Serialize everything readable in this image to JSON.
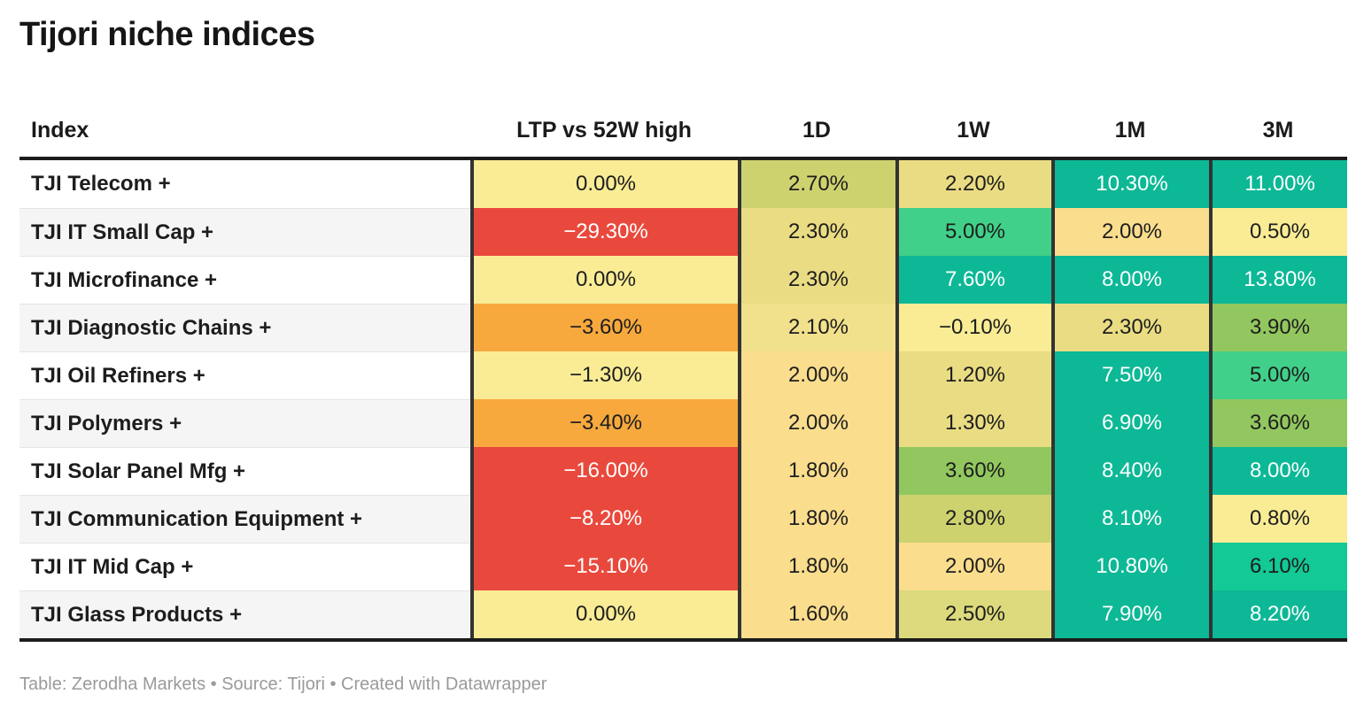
{
  "footer": "Table: Zerodha Markets • Source: Tijori • Created with Datawrapper",
  "chart_data": {
    "type": "table",
    "title": "Tijori niche indices",
    "columns": [
      "Index",
      "LTP vs 52W high",
      "1D",
      "1W",
      "1M",
      "3M"
    ],
    "rows": [
      {
        "index": "TJI Telecom +",
        "values": [
          "0.00%",
          "2.70%",
          "2.20%",
          "10.30%",
          "11.00%"
        ],
        "colors": [
          "paleYellow",
          "olive",
          "khaki",
          "teal",
          "teal"
        ]
      },
      {
        "index": "TJI IT Small Cap +",
        "values": [
          "−29.30%",
          "2.30%",
          "5.00%",
          "2.00%",
          "0.50%"
        ],
        "colors": [
          "red",
          "khaki",
          "medGreen",
          "peach",
          "paleYellow"
        ]
      },
      {
        "index": "TJI Microfinance +",
        "values": [
          "0.00%",
          "2.30%",
          "7.60%",
          "8.00%",
          "13.80%"
        ],
        "colors": [
          "paleYellow",
          "khaki",
          "teal",
          "teal",
          "teal"
        ]
      },
      {
        "index": "TJI Diagnostic Chains +",
        "values": [
          "−3.60%",
          "2.10%",
          "−0.10%",
          "2.30%",
          "3.90%"
        ],
        "colors": [
          "orange",
          "khakiLight",
          "paleYellow",
          "khaki",
          "green"
        ]
      },
      {
        "index": "TJI Oil Refiners +",
        "values": [
          "−1.30%",
          "2.00%",
          "1.20%",
          "7.50%",
          "5.00%"
        ],
        "colors": [
          "paleYellow",
          "peach",
          "khaki",
          "teal",
          "medGreen"
        ]
      },
      {
        "index": "TJI Polymers +",
        "values": [
          "−3.40%",
          "2.00%",
          "1.30%",
          "6.90%",
          "3.60%"
        ],
        "colors": [
          "orange",
          "peach",
          "khaki",
          "teal",
          "green"
        ]
      },
      {
        "index": "TJI Solar Panel Mfg +",
        "values": [
          "−16.00%",
          "1.80%",
          "3.60%",
          "8.40%",
          "8.00%"
        ],
        "colors": [
          "red",
          "peach",
          "green",
          "teal",
          "teal"
        ]
      },
      {
        "index": "TJI Communication Equipment +",
        "values": [
          "−8.20%",
          "1.80%",
          "2.80%",
          "8.10%",
          "0.80%"
        ],
        "colors": [
          "red",
          "peach",
          "olive",
          "teal",
          "paleYellow"
        ]
      },
      {
        "index": "TJI IT Mid Cap +",
        "values": [
          "−15.10%",
          "1.80%",
          "2.00%",
          "10.80%",
          "6.10%"
        ],
        "colors": [
          "red",
          "peach",
          "peach",
          "teal",
          "emerald"
        ]
      },
      {
        "index": "TJI Glass Products +",
        "values": [
          "0.00%",
          "1.60%",
          "2.50%",
          "7.90%",
          "8.20%"
        ],
        "colors": [
          "paleYellow",
          "peach",
          "oliveKhaki",
          "teal",
          "teal"
        ]
      }
    ]
  },
  "palette": {
    "red": {
      "bg": "#E9493D",
      "fg": "#FFFFFF"
    },
    "orange": {
      "bg": "#F7A93E",
      "fg": "#1D1D1D"
    },
    "paleYellow": {
      "bg": "#F9EC95",
      "fg": "#1D1D1D"
    },
    "khakiLight": {
      "bg": "#F2E18C",
      "fg": "#1D1D1D"
    },
    "khaki": {
      "bg": "#EADC83",
      "fg": "#1D1D1D"
    },
    "peach": {
      "bg": "#FADD8D",
      "fg": "#1D1D1D"
    },
    "oliveKhaki": {
      "bg": "#DCDA7C",
      "fg": "#1D1D1D"
    },
    "olive": {
      "bg": "#CDD26F",
      "fg": "#1D1D1D"
    },
    "green": {
      "bg": "#92C75F",
      "fg": "#1D1D1D"
    },
    "medGreen": {
      "bg": "#41D089",
      "fg": "#1D1D1D"
    },
    "emerald": {
      "bg": "#13C995",
      "fg": "#1D1D1D"
    },
    "teal": {
      "bg": "#0DB896",
      "fg": "#FFFFFF"
    }
  }
}
